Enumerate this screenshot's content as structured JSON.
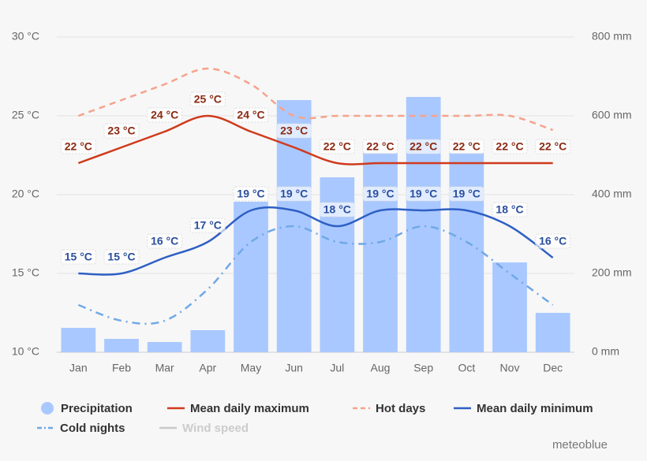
{
  "chart_data": {
    "type": "bar",
    "categories": [
      "Jan",
      "Feb",
      "Mar",
      "Apr",
      "May",
      "Jun",
      "Jul",
      "Aug",
      "Sep",
      "Oct",
      "Nov",
      "Dec"
    ],
    "ylim": [
      10,
      30
    ],
    "yticks": [
      {
        "value": 10,
        "label": "10 °C"
      },
      {
        "value": 15,
        "label": "15 °C"
      },
      {
        "value": 20,
        "label": "20 °C"
      },
      {
        "value": 25,
        "label": "25 °C"
      },
      {
        "value": 30,
        "label": "30 °C"
      }
    ],
    "y2lim": [
      0,
      800
    ],
    "y2ticks": [
      {
        "value": 0,
        "label": "0 mm"
      },
      {
        "value": 200,
        "label": "200 mm"
      },
      {
        "value": 400,
        "label": "400 mm"
      },
      {
        "value": 600,
        "label": "600 mm"
      },
      {
        "value": 800,
        "label": "800 mm"
      }
    ],
    "grid": true,
    "series": [
      {
        "name": "Precipitation",
        "type": "bar",
        "axis": "y2",
        "color": "#a9c8ff",
        "values": [
          62,
          34,
          26,
          56,
          382,
          640,
          444,
          506,
          648,
          506,
          228,
          100
        ]
      },
      {
        "name": "Mean daily maximum",
        "type": "line",
        "color": "#cf3a1c",
        "dash": "solid",
        "values": [
          22,
          23,
          24,
          25,
          24,
          23,
          22,
          22,
          22,
          22,
          22,
          22
        ],
        "value_labels": [
          "22 °C",
          "23 °C",
          "24 °C",
          "25 °C",
          "24 °C",
          "23 °C",
          "22 °C",
          "22 °C",
          "22 °C",
          "22 °C",
          "22 °C",
          "22 °C"
        ]
      },
      {
        "name": "Hot days",
        "type": "line",
        "color": "#f6a38c",
        "dash": "dashed",
        "values": [
          25,
          26,
          27,
          28,
          27,
          25,
          25,
          25,
          25,
          25,
          25,
          24.1
        ]
      },
      {
        "name": "Mean daily minimum",
        "type": "line",
        "color": "#2f5fc4",
        "dash": "solid",
        "values": [
          15,
          15,
          16,
          17,
          19,
          19,
          18,
          19,
          19,
          19,
          18,
          16
        ],
        "value_labels": [
          "15 °C",
          "15 °C",
          "16 °C",
          "17 °C",
          "19 °C",
          "19 °C",
          "18 °C",
          "19 °C",
          "19 °C",
          "19 °C",
          "18 °C",
          "16 °C"
        ]
      },
      {
        "name": "Cold nights",
        "type": "line",
        "color": "#6fa8e6",
        "dash": "dashdot",
        "values": [
          13,
          12,
          12,
          14,
          17,
          18,
          17,
          17,
          18,
          17,
          15,
          13
        ]
      },
      {
        "name": "Wind speed",
        "type": "line",
        "color": "#c8c8c8",
        "dash": "solid",
        "visible": false,
        "values": [
          null,
          null,
          null,
          null,
          null,
          null,
          null,
          null,
          null,
          null,
          null,
          null
        ]
      }
    ],
    "credit": "meteoblue"
  }
}
